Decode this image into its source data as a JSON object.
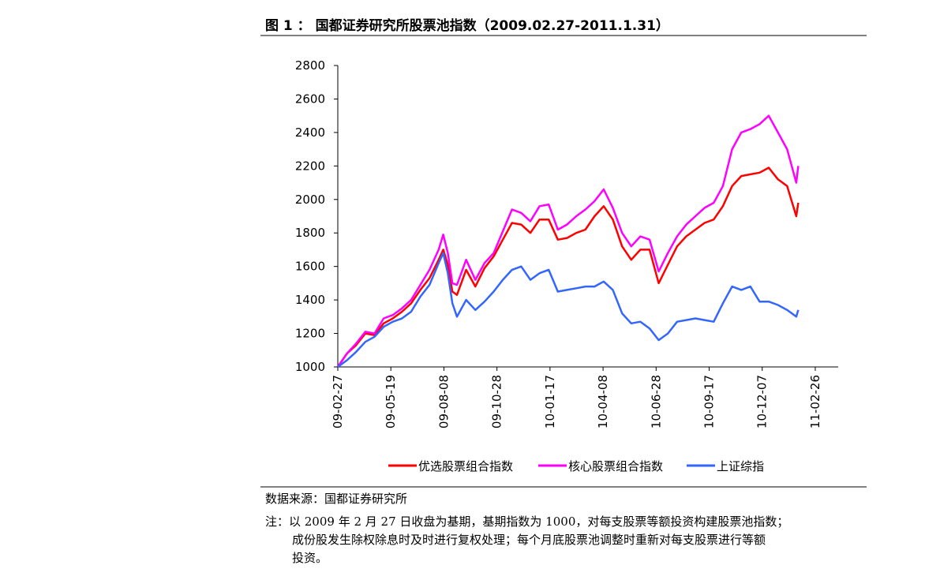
{
  "chart_data": {
    "type": "line",
    "title": "图 1 ： 国都证券研究所股票池指数（2009.02.27-2011.1.31）",
    "x": [
      "09-02-27",
      "09-03-13",
      "09-03-27",
      "09-04-10",
      "09-04-24",
      "09-05-08",
      "09-05-22",
      "09-06-05",
      "09-06-19",
      "09-07-03",
      "09-07-17",
      "09-07-31",
      "09-08-07",
      "09-08-14",
      "09-08-21",
      "09-08-28",
      "09-09-11",
      "09-09-25",
      "09-10-09",
      "09-10-23",
      "09-11-06",
      "09-11-20",
      "09-12-04",
      "09-12-18",
      "10-01-01",
      "10-01-15",
      "10-01-29",
      "10-02-12",
      "10-02-26",
      "10-03-12",
      "10-03-26",
      "10-04-09",
      "10-04-23",
      "10-05-07",
      "10-05-21",
      "10-06-04",
      "10-06-18",
      "10-07-02",
      "10-07-16",
      "10-07-30",
      "10-08-13",
      "10-08-27",
      "10-09-10",
      "10-09-24",
      "10-10-08",
      "10-10-22",
      "10-11-05",
      "10-11-19",
      "10-12-03",
      "10-12-17",
      "10-12-31",
      "11-01-14",
      "11-01-28",
      "11-01-31"
    ],
    "series": [
      {
        "name": "优选股票组合指数",
        "color": "#ff0000",
        "values": [
          1000,
          1080,
          1130,
          1200,
          1190,
          1260,
          1290,
          1330,
          1380,
          1460,
          1530,
          1640,
          1700,
          1610,
          1450,
          1430,
          1580,
          1480,
          1590,
          1660,
          1760,
          1860,
          1850,
          1800,
          1880,
          1880,
          1760,
          1770,
          1800,
          1820,
          1900,
          1960,
          1880,
          1720,
          1640,
          1700,
          1700,
          1500,
          1610,
          1720,
          1780,
          1820,
          1860,
          1880,
          1960,
          2080,
          2140,
          2150,
          2160,
          2190,
          2120,
          2080,
          1900,
          1980
        ]
      },
      {
        "name": "核心股票组合指数",
        "color": "#ff00ff",
        "values": [
          1000,
          1080,
          1140,
          1210,
          1200,
          1290,
          1310,
          1350,
          1400,
          1490,
          1580,
          1700,
          1790,
          1680,
          1500,
          1490,
          1640,
          1520,
          1620,
          1680,
          1810,
          1940,
          1920,
          1870,
          1960,
          1970,
          1820,
          1850,
          1900,
          1940,
          1990,
          2060,
          1950,
          1800,
          1720,
          1780,
          1760,
          1570,
          1680,
          1780,
          1850,
          1900,
          1950,
          1980,
          2080,
          2300,
          2400,
          2420,
          2450,
          2500,
          2400,
          2300,
          2100,
          2200
        ]
      },
      {
        "name": "上证综指",
        "color": "#3366ff",
        "values": [
          1000,
          1040,
          1090,
          1150,
          1180,
          1240,
          1270,
          1290,
          1330,
          1420,
          1490,
          1620,
          1680,
          1560,
          1380,
          1300,
          1400,
          1340,
          1390,
          1450,
          1520,
          1580,
          1600,
          1520,
          1560,
          1580,
          1450,
          1460,
          1470,
          1480,
          1480,
          1510,
          1460,
          1320,
          1260,
          1270,
          1230,
          1160,
          1200,
          1270,
          1280,
          1290,
          1280,
          1270,
          1380,
          1480,
          1460,
          1480,
          1390,
          1390,
          1370,
          1340,
          1300,
          1340
        ]
      }
    ],
    "xlim": [
      "09-02-27",
      "11-04-02"
    ],
    "xticks": [
      "09-02-27",
      "09-05-19",
      "09-08-08",
      "09-10-28",
      "10-01-17",
      "10-04-08",
      "10-06-28",
      "10-09-17",
      "10-12-07",
      "11-02-26"
    ],
    "ylim": [
      1000,
      2800
    ],
    "yticks": [
      1000,
      1200,
      1400,
      1600,
      1800,
      2000,
      2200,
      2400,
      2600,
      2800
    ],
    "legend": "bottom"
  },
  "source": "数据来源：国都证券研究所",
  "notes": [
    "注：以 2009 年 2 月 27 日收盘为基期，基期指数为 1000，对每支股票等额投资构建股票池指数；",
    "成份股发生除权除息时及时进行复权处理；每个月底股票池调整时重新对每支股票进行等额",
    "投资。"
  ]
}
